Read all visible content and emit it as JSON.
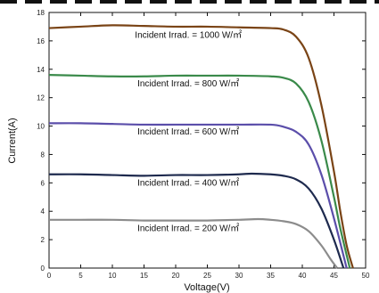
{
  "chart_data": {
    "type": "line",
    "title": "",
    "xlabel": "Voltage(V)",
    "ylabel": "Current(A)",
    "xlim": [
      0,
      50
    ],
    "ylim": [
      0,
      18
    ],
    "x_ticks": [
      0,
      5,
      10,
      15,
      20,
      25,
      30,
      35,
      40,
      45,
      50
    ],
    "y_ticks": [
      0,
      2,
      4,
      6,
      8,
      10,
      12,
      14,
      16,
      18
    ],
    "grid": false,
    "legend": "none",
    "series": [
      {
        "label": "Incident Irrad. = 1000 W/㎡",
        "color": "#7a4416",
        "x": [
          0,
          5,
          10,
          15,
          20,
          25,
          30,
          35,
          37,
          39,
          41,
          43,
          45,
          46,
          47,
          48
        ],
        "y": [
          16.9,
          17.0,
          17.1,
          17.05,
          17.0,
          17.0,
          16.95,
          16.9,
          16.8,
          16.3,
          14.8,
          11.5,
          6.8,
          4.0,
          1.6,
          0
        ]
      },
      {
        "label": "Incident Irrad. = 800 W/㎡",
        "color": "#3a8a4a",
        "x": [
          0,
          5,
          10,
          15,
          20,
          25,
          30,
          35,
          37,
          39,
          41,
          43,
          45,
          46,
          47.5
        ],
        "y": [
          13.6,
          13.55,
          13.5,
          13.5,
          13.55,
          13.55,
          13.55,
          13.5,
          13.4,
          13.0,
          11.7,
          9.0,
          5.0,
          2.8,
          0
        ]
      },
      {
        "label": "Incident Irrad. = 600 W/㎡",
        "color": "#5b4eaa",
        "x": [
          0,
          5,
          10,
          15,
          20,
          25,
          30,
          35,
          37,
          39,
          41,
          43,
          45,
          47
        ],
        "y": [
          10.2,
          10.2,
          10.15,
          10.1,
          10.1,
          10.1,
          10.1,
          10.1,
          9.95,
          9.6,
          8.7,
          6.6,
          3.5,
          0
        ]
      },
      {
        "label": "Incident Irrad. = 400 W/㎡",
        "color": "#1e2a4e",
        "x": [
          0,
          5,
          10,
          15,
          20,
          25,
          30,
          32,
          35,
          37,
          39,
          41,
          43,
          45,
          46.5
        ],
        "y": [
          6.6,
          6.6,
          6.55,
          6.5,
          6.55,
          6.55,
          6.6,
          6.65,
          6.6,
          6.5,
          6.25,
          5.6,
          4.2,
          2.0,
          0
        ]
      },
      {
        "label": "Incident Irrad. = 200 W/㎡",
        "color": "#8c8c8c",
        "x": [
          0,
          5,
          10,
          15,
          20,
          25,
          30,
          33,
          35,
          37,
          39,
          41,
          43,
          44.5,
          45.5
        ],
        "y": [
          3.4,
          3.4,
          3.4,
          3.35,
          3.35,
          3.35,
          3.4,
          3.45,
          3.4,
          3.3,
          3.1,
          2.6,
          1.6,
          0.6,
          0
        ]
      }
    ],
    "annotations": [
      {
        "text": "Incident Irrad. = 1000 W/㎡",
        "x": 22,
        "y": 16.2
      },
      {
        "text": "Incident Irrad. = 800 W/㎡",
        "x": 22,
        "y": 12.8
      },
      {
        "text": "Incident Irrad. = 600 W/㎡",
        "x": 22,
        "y": 9.4
      },
      {
        "text": "Incident Irrad. = 400 W/㎡",
        "x": 22,
        "y": 5.8
      },
      {
        "text": "Incident Irrad. = 200 W/㎡",
        "x": 22,
        "y": 2.6
      }
    ]
  }
}
